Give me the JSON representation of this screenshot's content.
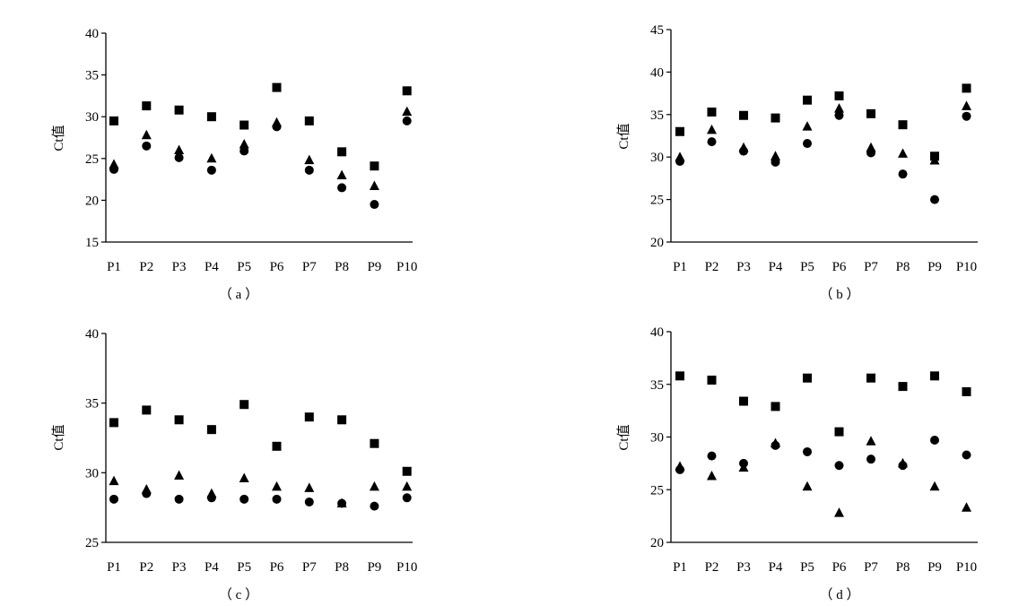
{
  "chart_data": [
    {
      "type": "scatter",
      "panel_label": "（ a ）",
      "ylabel": "Ct值",
      "xlabel": "",
      "categories": [
        "P1",
        "P2",
        "P3",
        "P4",
        "P5",
        "P6",
        "P7",
        "P8",
        "P9",
        "P10"
      ],
      "ylim": [
        15,
        40
      ],
      "yticks": [
        15,
        20,
        25,
        30,
        35,
        40
      ],
      "grid": false,
      "legend": "none",
      "series": [
        {
          "marker": "square",
          "values": [
            29.5,
            31.3,
            30.8,
            30.0,
            29.0,
            33.5,
            29.5,
            25.8,
            24.1,
            33.1
          ]
        },
        {
          "marker": "triangle",
          "values": [
            24.3,
            27.8,
            26.0,
            25.0,
            26.7,
            29.3,
            24.8,
            23.0,
            21.7,
            30.6
          ]
        },
        {
          "marker": "circle",
          "values": [
            23.7,
            26.5,
            25.1,
            23.6,
            25.9,
            28.8,
            23.6,
            21.5,
            19.5,
            29.5
          ]
        }
      ]
    },
    {
      "type": "scatter",
      "panel_label": "（ b ）",
      "ylabel": "Ct值",
      "xlabel": "",
      "categories": [
        "P1",
        "P2",
        "P3",
        "P4",
        "P5",
        "P6",
        "P7",
        "P8",
        "P9",
        "P10"
      ],
      "ylim": [
        20,
        45
      ],
      "yticks": [
        20,
        25,
        30,
        35,
        40,
        45
      ],
      "grid": false,
      "legend": "none",
      "series": [
        {
          "marker": "square",
          "values": [
            33.0,
            35.3,
            34.9,
            34.6,
            36.7,
            37.2,
            35.1,
            33.8,
            30.1,
            38.1
          ]
        },
        {
          "marker": "triangle",
          "values": [
            30.0,
            33.2,
            31.1,
            30.1,
            33.6,
            35.7,
            31.1,
            30.4,
            29.6,
            36.0
          ]
        },
        {
          "marker": "circle",
          "values": [
            29.5,
            31.8,
            30.7,
            29.4,
            31.6,
            34.9,
            30.5,
            28.0,
            25.0,
            34.8
          ]
        }
      ]
    },
    {
      "type": "scatter",
      "panel_label": "（ c ）",
      "ylabel": "Ct值",
      "xlabel": "",
      "categories": [
        "P1",
        "P2",
        "P3",
        "P4",
        "P5",
        "P6",
        "P7",
        "P8",
        "P9",
        "P10"
      ],
      "ylim": [
        25,
        40
      ],
      "yticks": [
        25,
        30,
        35,
        40
      ],
      "grid": false,
      "legend": "none",
      "series": [
        {
          "marker": "square",
          "values": [
            33.6,
            34.5,
            33.8,
            33.1,
            34.9,
            31.9,
            34.0,
            33.8,
            32.1,
            30.1
          ]
        },
        {
          "marker": "triangle",
          "values": [
            29.4,
            28.8,
            29.8,
            28.5,
            29.6,
            29.0,
            28.9,
            27.8,
            29.0,
            29.0
          ]
        },
        {
          "marker": "circle",
          "values": [
            28.1,
            28.5,
            28.1,
            28.2,
            28.1,
            28.1,
            27.9,
            27.8,
            27.6,
            28.2
          ]
        }
      ]
    },
    {
      "type": "scatter",
      "panel_label": "（ d ）",
      "ylabel": "Ct值",
      "xlabel": "",
      "categories": [
        "P1",
        "P2",
        "P3",
        "P4",
        "P5",
        "P6",
        "P7",
        "P8",
        "P9",
        "P10"
      ],
      "ylim": [
        20,
        40
      ],
      "yticks": [
        20,
        25,
        30,
        35,
        40
      ],
      "grid": false,
      "legend": "none",
      "series": [
        {
          "marker": "square",
          "values": [
            35.8,
            35.4,
            33.4,
            32.9,
            35.6,
            30.5,
            35.6,
            34.8,
            35.8,
            34.3
          ]
        },
        {
          "marker": "triangle",
          "values": [
            27.2,
            26.3,
            27.1,
            29.4,
            25.3,
            22.8,
            29.6,
            27.5,
            25.3,
            23.3
          ]
        },
        {
          "marker": "circle",
          "values": [
            26.9,
            28.2,
            27.5,
            29.2,
            28.6,
            27.3,
            27.9,
            27.3,
            29.7,
            28.3
          ]
        }
      ]
    }
  ]
}
